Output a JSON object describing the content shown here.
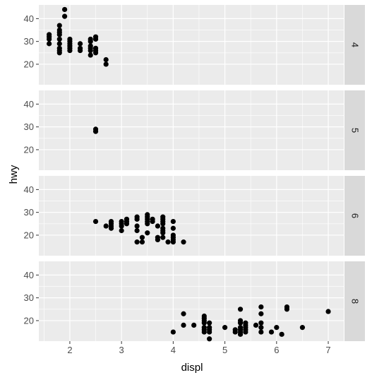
{
  "chart_data": {
    "type": "scatter",
    "facet_variable": "cyl",
    "xlabel": "displ",
    "ylabel": "hwy",
    "xlim": [
      1.4,
      7.3
    ],
    "ylim": [
      11,
      46
    ],
    "x_ticks": [
      2,
      3,
      4,
      5,
      6,
      7
    ],
    "y_ticks": [
      20,
      30,
      40
    ],
    "grid": true,
    "point_color": "#000000",
    "panel_background": "#ebebeb",
    "strip_background": "#d9d9d9",
    "grid_color": "#ffffff",
    "panels": [
      {
        "label": "4",
        "points": [
          [
            1.6,
            33
          ],
          [
            1.6,
            32
          ],
          [
            1.6,
            31
          ],
          [
            1.6,
            29
          ],
          [
            1.8,
            37
          ],
          [
            1.8,
            35
          ],
          [
            1.8,
            34
          ],
          [
            1.8,
            33
          ],
          [
            1.8,
            31
          ],
          [
            1.8,
            29
          ],
          [
            1.8,
            27
          ],
          [
            1.8,
            26
          ],
          [
            1.8,
            25
          ],
          [
            1.9,
            44
          ],
          [
            1.9,
            41
          ],
          [
            2.0,
            31
          ],
          [
            2.0,
            30
          ],
          [
            2.0,
            29
          ],
          [
            2.0,
            28
          ],
          [
            2.0,
            27
          ],
          [
            2.0,
            26
          ],
          [
            2.2,
            29
          ],
          [
            2.2,
            27
          ],
          [
            2.2,
            26
          ],
          [
            2.4,
            31
          ],
          [
            2.4,
            30
          ],
          [
            2.4,
            28
          ],
          [
            2.4,
            27
          ],
          [
            2.4,
            26
          ],
          [
            2.4,
            24
          ],
          [
            2.5,
            32
          ],
          [
            2.5,
            31
          ],
          [
            2.5,
            27
          ],
          [
            2.5,
            26
          ],
          [
            2.5,
            25
          ],
          [
            2.7,
            22
          ],
          [
            2.7,
            20
          ]
        ]
      },
      {
        "label": "5",
        "points": [
          [
            2.5,
            29
          ],
          [
            2.5,
            28
          ]
        ]
      },
      {
        "label": "6",
        "points": [
          [
            2.5,
            26
          ],
          [
            2.7,
            24
          ],
          [
            2.8,
            26
          ],
          [
            2.8,
            25
          ],
          [
            2.8,
            24
          ],
          [
            2.8,
            23
          ],
          [
            3.0,
            26
          ],
          [
            3.0,
            25
          ],
          [
            3.0,
            24
          ],
          [
            3.0,
            22
          ],
          [
            3.1,
            27
          ],
          [
            3.1,
            26
          ],
          [
            3.1,
            25
          ],
          [
            3.3,
            28
          ],
          [
            3.3,
            27
          ],
          [
            3.3,
            24
          ],
          [
            3.3,
            22
          ],
          [
            3.3,
            17
          ],
          [
            3.4,
            19
          ],
          [
            3.4,
            17
          ],
          [
            3.5,
            29
          ],
          [
            3.5,
            28
          ],
          [
            3.5,
            27
          ],
          [
            3.5,
            26
          ],
          [
            3.5,
            25
          ],
          [
            3.5,
            21
          ],
          [
            3.6,
            27
          ],
          [
            3.6,
            26
          ],
          [
            3.7,
            24
          ],
          [
            3.7,
            19
          ],
          [
            3.7,
            18
          ],
          [
            3.8,
            28
          ],
          [
            3.8,
            27
          ],
          [
            3.8,
            26
          ],
          [
            3.8,
            25
          ],
          [
            3.8,
            23
          ],
          [
            3.8,
            22
          ],
          [
            3.8,
            21
          ],
          [
            3.8,
            19
          ],
          [
            3.9,
            17
          ],
          [
            4.0,
            26
          ],
          [
            4.0,
            23
          ],
          [
            4.0,
            20
          ],
          [
            4.0,
            19
          ],
          [
            4.0,
            18
          ],
          [
            4.0,
            17
          ],
          [
            4.2,
            17
          ]
        ]
      },
      {
        "label": "8",
        "points": [
          [
            4.0,
            15
          ],
          [
            4.2,
            23
          ],
          [
            4.2,
            18
          ],
          [
            4.4,
            18
          ],
          [
            4.6,
            22
          ],
          [
            4.6,
            21
          ],
          [
            4.6,
            20
          ],
          [
            4.6,
            19
          ],
          [
            4.6,
            17
          ],
          [
            4.6,
            16
          ],
          [
            4.6,
            15
          ],
          [
            4.7,
            19
          ],
          [
            4.7,
            17
          ],
          [
            4.7,
            16
          ],
          [
            4.7,
            15
          ],
          [
            4.7,
            12
          ],
          [
            5.0,
            17
          ],
          [
            5.2,
            16
          ],
          [
            5.2,
            15
          ],
          [
            5.3,
            25
          ],
          [
            5.3,
            20
          ],
          [
            5.3,
            19
          ],
          [
            5.3,
            17
          ],
          [
            5.3,
            16
          ],
          [
            5.3,
            15
          ],
          [
            5.3,
            14
          ],
          [
            5.4,
            19
          ],
          [
            5.4,
            18
          ],
          [
            5.4,
            17
          ],
          [
            5.4,
            16
          ],
          [
            5.4,
            15
          ],
          [
            5.6,
            18
          ],
          [
            5.7,
            26
          ],
          [
            5.7,
            23
          ],
          [
            5.7,
            19
          ],
          [
            5.7,
            17
          ],
          [
            5.7,
            15
          ],
          [
            5.9,
            15
          ],
          [
            6.0,
            17
          ],
          [
            6.1,
            14
          ],
          [
            6.2,
            26
          ],
          [
            6.2,
            25
          ],
          [
            6.5,
            17
          ],
          [
            7.0,
            24
          ]
        ]
      }
    ]
  }
}
